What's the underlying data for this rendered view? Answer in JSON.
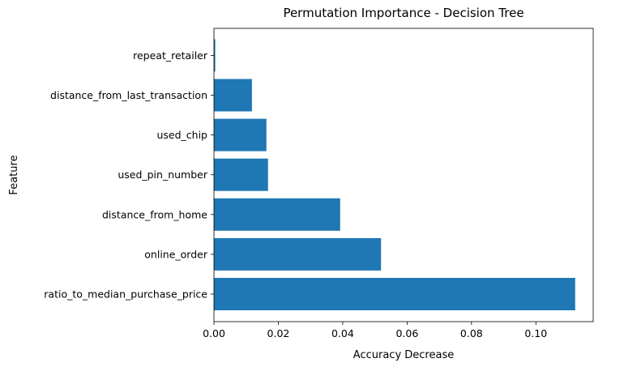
{
  "chart_data": {
    "type": "bar",
    "orientation": "horizontal",
    "title": "Permutation Importance - Decision Tree",
    "xlabel": "Accuracy Decrease",
    "ylabel": "Feature",
    "categories": [
      "ratio_to_median_purchase_price",
      "online_order",
      "distance_from_home",
      "used_pin_number",
      "used_chip",
      "distance_from_last_transaction",
      "repeat_retailer"
    ],
    "values": [
      0.1122,
      0.0519,
      0.0392,
      0.0168,
      0.0163,
      0.0118,
      0.0004
    ],
    "xlim": [
      0,
      0.1178
    ],
    "xticks": [
      0.0,
      0.02,
      0.04,
      0.06,
      0.08,
      0.1
    ],
    "xtick_labels": [
      "0.00",
      "0.02",
      "0.04",
      "0.06",
      "0.08",
      "0.10"
    ],
    "bar_color": "#1f77b4",
    "grid": false,
    "legend": "none"
  }
}
